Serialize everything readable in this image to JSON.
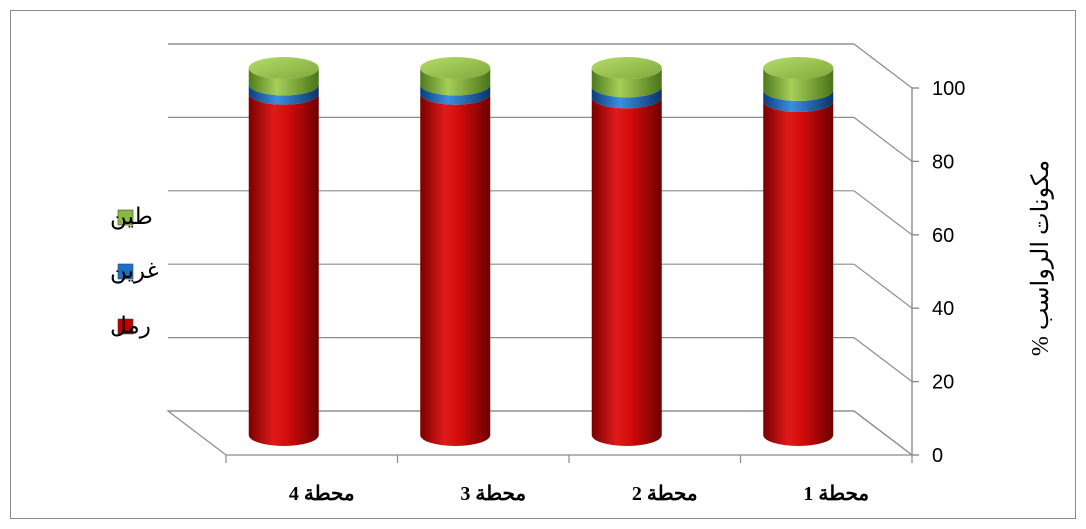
{
  "chart_data": {
    "type": "bar",
    "stacked": true,
    "three_d": true,
    "categories": [
      "محطة 1",
      "محطة 2",
      "محطة 3",
      "محطة 4"
    ],
    "series": [
      {
        "name": "رمل",
        "values": [
          91,
          92,
          93,
          93
        ],
        "color": "#c00000"
      },
      {
        "name": "غرين",
        "values": [
          3,
          3,
          2.5,
          2.5
        ],
        "color": "#1f6fc5"
      },
      {
        "name": "طين",
        "values": [
          6,
          5,
          4.5,
          4.5
        ],
        "color": "#8db83f"
      }
    ],
    "ylabel": "مكونات الرواسب %",
    "ylim": [
      0,
      100
    ],
    "yticks": [
      0,
      20,
      40,
      60,
      80,
      100
    ],
    "grid": true,
    "legend_position": "left",
    "axis_side": "right",
    "category_order": "right-to-left"
  }
}
